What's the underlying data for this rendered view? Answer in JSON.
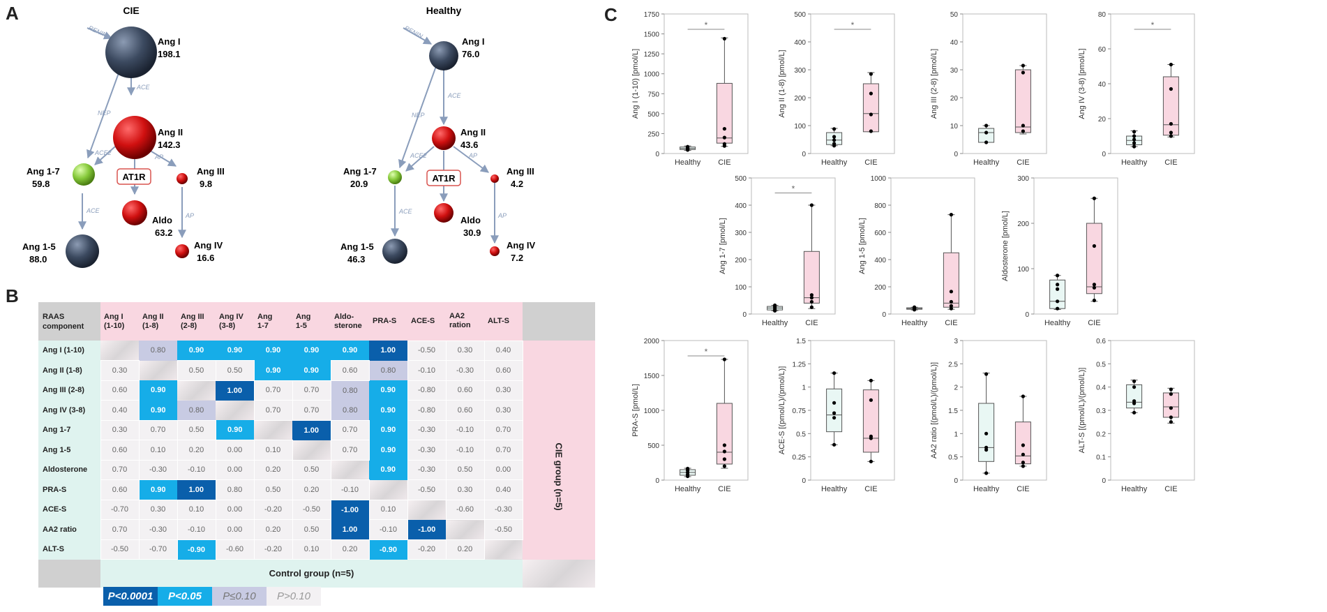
{
  "panels": {
    "a": "A",
    "b": "B",
    "c": "C"
  },
  "panel_a": {
    "cie": {
      "title": "CIE",
      "ang1": {
        "name": "Ang I",
        "value": "198.1"
      },
      "ang2": {
        "name": "Ang II",
        "value": "142.3"
      },
      "ang17": {
        "name": "Ang 1-7",
        "value": "59.8"
      },
      "ang3": {
        "name": "Ang III",
        "value": "9.8"
      },
      "aldo": {
        "name": "Aldo",
        "value": "63.2"
      },
      "ang15": {
        "name": "Ang 1-5",
        "value": "88.0"
      },
      "ang4": {
        "name": "Ang IV",
        "value": "16.6"
      }
    },
    "healthy": {
      "title": "Healthy",
      "ang1": {
        "name": "Ang I",
        "value": "76.0"
      },
      "ang2": {
        "name": "Ang II",
        "value": "43.6"
      },
      "ang17": {
        "name": "Ang 1-7",
        "value": "20.9"
      },
      "ang3": {
        "name": "Ang III",
        "value": "4.2"
      },
      "aldo": {
        "name": "Aldo",
        "value": "30.9"
      },
      "ang15": {
        "name": "Ang 1-5",
        "value": "46.3"
      },
      "ang4": {
        "name": "Ang IV",
        "value": "7.2"
      }
    },
    "enzymes": {
      "renin": "RENIN",
      "ace": "ACE",
      "nep": "NEP",
      "ace2": "ACE2",
      "ap": "AP",
      "at1r": "AT1R"
    }
  },
  "panel_b": {
    "corner": [
      "RAAS",
      "component"
    ],
    "columns": [
      [
        "Ang I",
        "(1-10)"
      ],
      [
        "Ang II",
        "(1-8)"
      ],
      [
        "Ang III",
        "(2-8)"
      ],
      [
        "Ang IV",
        "(3-8)"
      ],
      [
        "Ang",
        "1-7"
      ],
      [
        "Ang",
        "1-5"
      ],
      [
        "Aldo-",
        "sterone"
      ],
      [
        "PRA-S",
        ""
      ],
      [
        "ACE-S",
        ""
      ],
      [
        "AA2",
        "ration"
      ],
      [
        "ALT-S",
        ""
      ]
    ],
    "rows": [
      "Ang I (1-10)",
      "Ang II (1-8)",
      "Ang III (2-8)",
      "Ang IV (3-8)",
      "Ang 1-7",
      "Ang 1-5",
      "Aldosterone",
      "PRA-S",
      "ACE-S",
      "AA2 ratio",
      "ALT-S"
    ],
    "cells": [
      [
        "",
        "0.80",
        "0.90",
        "0.90",
        "0.90",
        "0.90",
        "0.90",
        "1.00",
        "-0.50",
        "0.30",
        "0.40"
      ],
      [
        "0.30",
        "",
        "0.50",
        "0.50",
        "0.90",
        "0.90",
        "0.60",
        "0.80",
        "-0.10",
        "-0.30",
        "0.60"
      ],
      [
        "0.60",
        "0.90",
        "",
        "1.00",
        "0.70",
        "0.70",
        "0.80",
        "0.90",
        "-0.80",
        "0.60",
        "0.30"
      ],
      [
        "0.40",
        "0.90",
        "0.80",
        "",
        "0.70",
        "0.70",
        "0.80",
        "0.90",
        "-0.80",
        "0.60",
        "0.30"
      ],
      [
        "0.30",
        "0.70",
        "0.50",
        "0.90",
        "",
        "1.00",
        "0.70",
        "0.90",
        "-0.30",
        "-0.10",
        "0.70"
      ],
      [
        "0.60",
        "0.10",
        "0.20",
        "0.00",
        "0.10",
        "",
        "0.70",
        "0.90",
        "-0.30",
        "-0.10",
        "0.70"
      ],
      [
        "0.70",
        "-0.30",
        "-0.10",
        "0.00",
        "0.20",
        "0.50",
        "",
        "0.90",
        "-0.30",
        "0.50",
        "0.00"
      ],
      [
        "0.60",
        "0.90",
        "1.00",
        "0.80",
        "0.50",
        "0.20",
        "-0.10",
        "",
        "-0.50",
        "0.30",
        "0.40"
      ],
      [
        "-0.70",
        "0.30",
        "0.10",
        "0.00",
        "-0.20",
        "-0.50",
        "-1.00",
        "0.10",
        "",
        "-0.60",
        "-0.30"
      ],
      [
        "0.70",
        "-0.30",
        "-0.10",
        "0.00",
        "0.20",
        "0.50",
        "1.00",
        "-0.10",
        "-1.00",
        "",
        "-0.50"
      ],
      [
        "-0.50",
        "-0.70",
        "-0.90",
        "-0.60",
        "-0.20",
        "0.10",
        "0.20",
        "-0.90",
        "-0.20",
        "0.20",
        ""
      ]
    ],
    "levels": [
      [
        0,
        3,
        2,
        2,
        2,
        2,
        2,
        1,
        0,
        0,
        0
      ],
      [
        0,
        0,
        0,
        0,
        2,
        2,
        0,
        3,
        0,
        0,
        0
      ],
      [
        0,
        2,
        0,
        1,
        0,
        0,
        3,
        2,
        0,
        0,
        0
      ],
      [
        0,
        2,
        3,
        0,
        0,
        0,
        3,
        2,
        0,
        0,
        0
      ],
      [
        0,
        0,
        0,
        2,
        0,
        1,
        0,
        2,
        0,
        0,
        0
      ],
      [
        0,
        0,
        0,
        0,
        0,
        0,
        0,
        2,
        0,
        0,
        0
      ],
      [
        0,
        0,
        0,
        0,
        0,
        0,
        0,
        2,
        0,
        0,
        0
      ],
      [
        0,
        2,
        1,
        0,
        0,
        0,
        0,
        0,
        0,
        0,
        0
      ],
      [
        0,
        0,
        0,
        0,
        0,
        0,
        1,
        0,
        0,
        0,
        0
      ],
      [
        0,
        0,
        0,
        0,
        0,
        0,
        1,
        0,
        1,
        0,
        0
      ],
      [
        0,
        0,
        2,
        0,
        0,
        0,
        0,
        2,
        0,
        0,
        0
      ]
    ],
    "cie_group": "CIE group (n=5)",
    "control_group": "Control group (n=5)",
    "legend": [
      "P<0.0001",
      "P<0.05",
      "P≤0.10",
      "P>0.10"
    ],
    "colors": {
      "p1": "#0a5fab",
      "p2": "#16ade8",
      "p3": "#c8cbe3",
      "p4": "#f3f1f3",
      "healthy": "#e9f7f4",
      "cie": "#f9d7e1"
    }
  },
  "chart_data": [
    {
      "type": "box",
      "title": "",
      "ylabel": "Ang I (1-10) [pmol/L]",
      "categories": [
        "Healthy",
        "CIE"
      ],
      "ylim": [
        0,
        1750
      ],
      "ticks": [
        "0",
        "250",
        "500",
        "750",
        "1000",
        "1250",
        "1500",
        "1750"
      ],
      "sig": "*",
      "boxes": [
        {
          "min": 40,
          "q1": 50,
          "median": 63,
          "q3": 82,
          "max": 95,
          "points": [
            45,
            55,
            60,
            70,
            85
          ]
        },
        {
          "min": 90,
          "q1": 130,
          "median": 195,
          "q3": 880,
          "max": 1450,
          "points": [
            95,
            120,
            200,
            310,
            1440
          ]
        }
      ]
    },
    {
      "type": "box",
      "title": "",
      "ylabel": "Ang II (1-8) [pmol/L]",
      "categories": [
        "Healthy",
        "CIE"
      ],
      "ylim": [
        0,
        500
      ],
      "ticks": [
        "0",
        "100",
        "200",
        "300",
        "400",
        "500"
      ],
      "sig": "*",
      "boxes": [
        {
          "min": 28,
          "q1": 32,
          "median": 48,
          "q3": 75,
          "max": 90,
          "points": [
            28,
            35,
            48,
            60,
            88
          ]
        },
        {
          "min": 78,
          "q1": 78,
          "median": 143,
          "q3": 250,
          "max": 290,
          "points": [
            80,
            140,
            215,
            285
          ]
        }
      ]
    },
    {
      "type": "box",
      "title": "",
      "ylabel": "Ang III (2-8) [pmol/L]",
      "categories": [
        "Healthy",
        "CIE"
      ],
      "ylim": [
        0,
        50
      ],
      "ticks": [
        "0",
        "10",
        "20",
        "30",
        "40",
        "50"
      ],
      "sig": "",
      "boxes": [
        {
          "min": 4,
          "q1": 4,
          "median": 7.5,
          "q3": 9,
          "max": 10,
          "points": [
            4,
            7.5,
            10
          ]
        },
        {
          "min": 7,
          "q1": 7.5,
          "median": 9.5,
          "q3": 30,
          "max": 31.5,
          "points": [
            8,
            10,
            29,
            31.5
          ]
        }
      ]
    },
    {
      "type": "box",
      "title": "",
      "ylabel": "Ang IV (3-8) [pmol/L]",
      "categories": [
        "Healthy",
        "CIE"
      ],
      "ylim": [
        0,
        80
      ],
      "ticks": [
        "0",
        "20",
        "40",
        "60",
        "80"
      ],
      "sig": "*",
      "boxes": [
        {
          "min": 4,
          "q1": 5,
          "median": 7.5,
          "q3": 10,
          "max": 13,
          "points": [
            4,
            6,
            8,
            10,
            12.5
          ]
        },
        {
          "min": 9.5,
          "q1": 10.5,
          "median": 16.5,
          "q3": 44,
          "max": 51,
          "points": [
            10,
            12,
            17,
            37,
            51
          ]
        }
      ]
    },
    {
      "type": "box",
      "title": "",
      "ylabel": "Ang 1-7 [pmol/L]",
      "categories": [
        "Healthy",
        "CIE"
      ],
      "ylim": [
        0,
        500
      ],
      "ticks": [
        "0",
        "100",
        "200",
        "300",
        "400",
        "500"
      ],
      "sig": "*",
      "boxes": [
        {
          "min": 12,
          "q1": 15,
          "median": 22,
          "q3": 28,
          "max": 32,
          "points": [
            12,
            16,
            22,
            27,
            32
          ]
        },
        {
          "min": 20,
          "q1": 40,
          "median": 60,
          "q3": 230,
          "max": 400,
          "points": [
            25,
            45,
            60,
            70,
            400
          ]
        }
      ]
    },
    {
      "type": "box",
      "title": "",
      "ylabel": "Ang 1-5 [pmol/L]",
      "categories": [
        "Healthy",
        "CIE"
      ],
      "ylim": [
        0,
        1000
      ],
      "ticks": [
        "0",
        "200",
        "400",
        "600",
        "800",
        "1000"
      ],
      "sig": "",
      "boxes": [
        {
          "min": 30,
          "q1": 35,
          "median": 40,
          "q3": 46,
          "max": 50,
          "points": [
            32,
            38,
            42,
            46,
            50
          ]
        },
        {
          "min": 35,
          "q1": 50,
          "median": 80,
          "q3": 450,
          "max": 730,
          "points": [
            40,
            60,
            90,
            165,
            730
          ]
        }
      ]
    },
    {
      "type": "box",
      "title": "",
      "ylabel": "Aldosterone [pmol/L]",
      "categories": [
        "Healthy",
        "CIE"
      ],
      "ylim": [
        0,
        300
      ],
      "ticks": [
        "0",
        "100",
        "200",
        "300"
      ],
      "sig": "",
      "boxes": [
        {
          "min": 10,
          "q1": 12,
          "median": 28,
          "q3": 75,
          "max": 85,
          "points": [
            12,
            28,
            55,
            65,
            85
          ]
        },
        {
          "min": 28,
          "q1": 45,
          "median": 60,
          "q3": 200,
          "max": 255,
          "points": [
            30,
            58,
            65,
            150,
            255
          ]
        }
      ]
    },
    {
      "type": "box",
      "title": "",
      "ylabel": "PRA-S [pmol/L]",
      "categories": [
        "Healthy",
        "CIE"
      ],
      "ylim": [
        0,
        2000
      ],
      "ticks": [
        "0",
        "500",
        "1000",
        "1500",
        "2000"
      ],
      "sig": "*",
      "boxes": [
        {
          "min": 50,
          "q1": 70,
          "median": 110,
          "q3": 150,
          "max": 170,
          "points": [
            55,
            80,
            110,
            140,
            165
          ]
        },
        {
          "min": 170,
          "q1": 230,
          "median": 400,
          "q3": 1100,
          "max": 1730,
          "points": [
            200,
            300,
            410,
            500,
            1730
          ]
        }
      ]
    },
    {
      "type": "box",
      "title": "",
      "ylabel": "ACE-S [(pmol/L)/(pmol/L)]",
      "categories": [
        "Healthy",
        "CIE"
      ],
      "ylim": [
        0,
        1.5
      ],
      "ticks": [
        "0",
        "0.25",
        "0.5",
        "0.75",
        "1",
        "1.25",
        "1.5"
      ],
      "sig": "",
      "boxes": [
        {
          "min": 0.38,
          "q1": 0.52,
          "median": 0.7,
          "q3": 0.98,
          "max": 1.15,
          "points": [
            0.38,
            0.67,
            0.72,
            0.83,
            1.15
          ]
        },
        {
          "min": 0.2,
          "q1": 0.3,
          "median": 0.45,
          "q3": 0.97,
          "max": 1.07,
          "points": [
            0.2,
            0.45,
            0.47,
            0.86,
            1.07
          ]
        }
      ]
    },
    {
      "type": "box",
      "title": "",
      "ylabel": "AA2 ratio [(pmol/L)/(pmol/L)]",
      "categories": [
        "Healthy",
        "CIE"
      ],
      "ylim": [
        0,
        3
      ],
      "ticks": [
        "0",
        "0.5",
        "1",
        "1.5",
        "2",
        "2.5",
        "3"
      ],
      "sig": "",
      "boxes": [
        {
          "min": 0.15,
          "q1": 0.4,
          "median": 0.7,
          "q3": 1.65,
          "max": 2.3,
          "points": [
            0.15,
            0.65,
            0.7,
            1.0,
            2.28
          ]
        },
        {
          "min": 0.3,
          "q1": 0.35,
          "median": 0.52,
          "q3": 1.25,
          "max": 1.8,
          "points": [
            0.3,
            0.38,
            0.55,
            0.75,
            1.8
          ]
        }
      ]
    },
    {
      "type": "box",
      "title": "",
      "ylabel": "ALT-S [(pmol/L)/(pmol/L)]",
      "categories": [
        "Healthy",
        "CIE"
      ],
      "ylim": [
        0,
        0.6
      ],
      "ticks": [
        "0",
        "0.1",
        "0.2",
        "0.3",
        "0.4",
        "0.5",
        "0.6"
      ],
      "sig": "",
      "boxes": [
        {
          "min": 0.29,
          "q1": 0.31,
          "median": 0.335,
          "q3": 0.41,
          "max": 0.43,
          "points": [
            0.29,
            0.33,
            0.34,
            0.4,
            0.425
          ]
        },
        {
          "min": 0.245,
          "q1": 0.27,
          "median": 0.315,
          "q3": 0.375,
          "max": 0.395,
          "points": [
            0.25,
            0.27,
            0.31,
            0.37,
            0.39
          ]
        }
      ]
    }
  ]
}
